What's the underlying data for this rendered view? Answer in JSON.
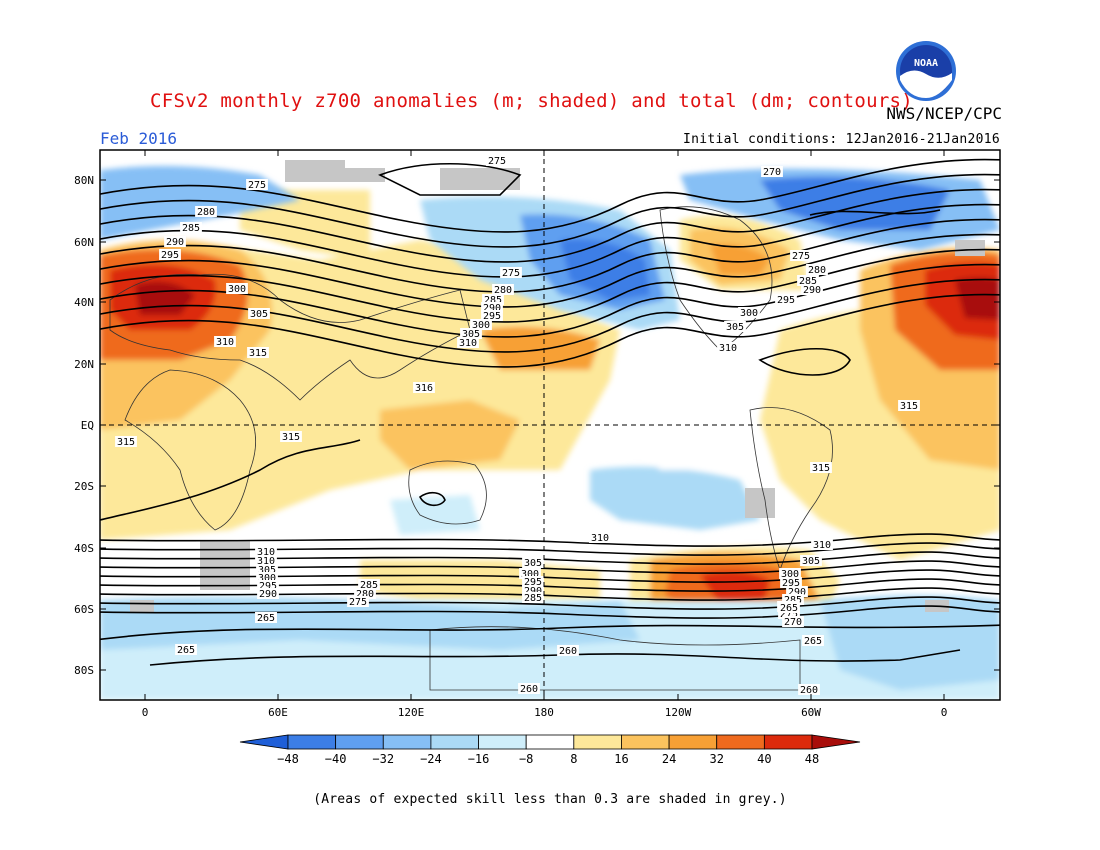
{
  "title": "CFSv2 monthly z700 anomalies (m; shaded) and total (dm; contours)",
  "agency": "NWS/NCEP/CPC",
  "logo_text": "NOAA",
  "month": "Feb 2016",
  "initial_conditions": "Initial conditions: 12Jan2016-21Jan2016",
  "footnote": "(Areas of expected skill less than 0.3 are shaded in grey.)",
  "axes": {
    "lat_labels": [
      "80N",
      "60N",
      "40N",
      "20N",
      "EQ",
      "20S",
      "40S",
      "60S",
      "80S"
    ],
    "lon_labels": [
      "0",
      "60E",
      "120E",
      "180",
      "120W",
      "60W",
      "0"
    ]
  },
  "colorbar": {
    "ticks": [
      "−48",
      "−40",
      "−32",
      "−24",
      "−16",
      "−8",
      "8",
      "16",
      "24",
      "32",
      "40",
      "48"
    ],
    "colors": [
      "#1f5fd8",
      "#3c7ee6",
      "#5f9ff0",
      "#86bff5",
      "#abdaf6",
      "#cfeefa",
      "#ffffff",
      "#fde89a",
      "#fbc35e",
      "#f7a035",
      "#ef6a1e",
      "#dc2a0c",
      "#a80d0a"
    ]
  },
  "contour_labels": [
    "275",
    "275",
    "280",
    "285",
    "290",
    "295",
    "300",
    "305",
    "310",
    "315",
    "315",
    "315",
    "275",
    "280",
    "285",
    "290",
    "295",
    "300",
    "305",
    "310",
    "316",
    "270",
    "275",
    "280",
    "285",
    "290",
    "295",
    "300",
    "305",
    "310",
    "315",
    "315",
    "310",
    "310",
    "305",
    "300",
    "295",
    "290",
    "285",
    "280",
    "275",
    "270",
    "265",
    "305",
    "300",
    "295",
    "290",
    "285",
    "310",
    "300",
    "295",
    "290",
    "285",
    "280",
    "275",
    "270",
    "265",
    "310",
    "305",
    "265",
    "265",
    "260",
    "260",
    "260"
  ]
}
